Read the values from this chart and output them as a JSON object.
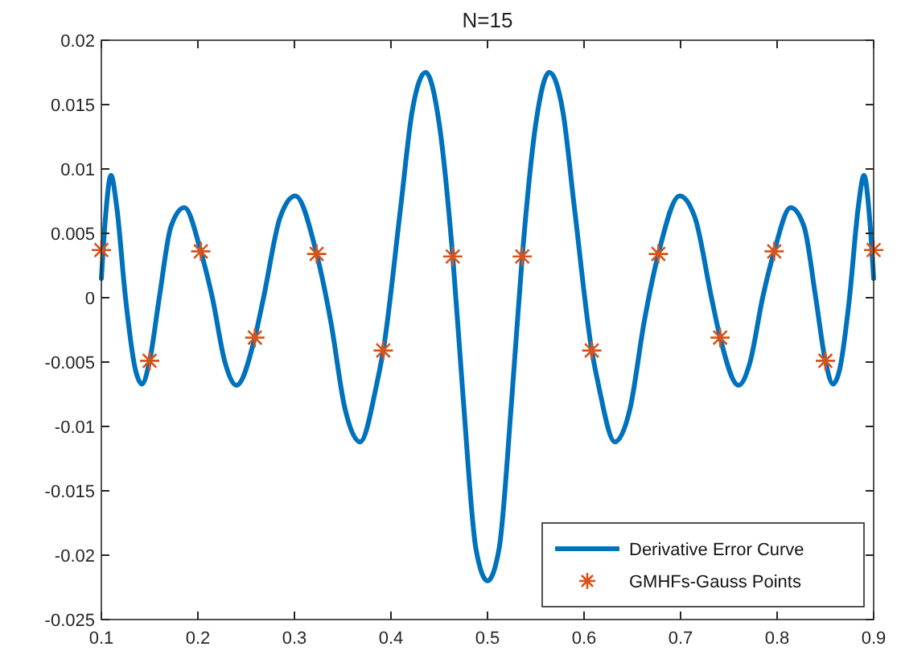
{
  "chart_data": {
    "type": "line",
    "title": "N=15",
    "xlim": [
      0.1,
      0.9
    ],
    "xticks": [
      0.1,
      0.2,
      0.3,
      0.4,
      0.5,
      0.6,
      0.7,
      0.8,
      0.9
    ],
    "ylim": [
      -0.025,
      0.02
    ],
    "yticks": [
      -0.025,
      -0.02,
      -0.015,
      -0.01,
      -0.005,
      0,
      0.005,
      0.01,
      0.015,
      0.02
    ],
    "grid": false,
    "legend": "bottom right",
    "series": [
      {
        "name": "Derivative Error Curve",
        "type": "line",
        "color": "#0072bd",
        "marker": "none",
        "line_style": "solid",
        "x": [
          0.1,
          0.104,
          0.11,
          0.116,
          0.125,
          0.135,
          0.142,
          0.15,
          0.16,
          0.172,
          0.186,
          0.203,
          0.215,
          0.228,
          0.24,
          0.259,
          0.268,
          0.285,
          0.301,
          0.323,
          0.338,
          0.352,
          0.368,
          0.385,
          0.392,
          0.41,
          0.422,
          0.436,
          0.45,
          0.464,
          0.475,
          0.488,
          0.5,
          0.512,
          0.525,
          0.536,
          0.55,
          0.564,
          0.578,
          0.59,
          0.608,
          0.615,
          0.632,
          0.648,
          0.662,
          0.677,
          0.699,
          0.715,
          0.732,
          0.741,
          0.76,
          0.772,
          0.785,
          0.797,
          0.814,
          0.828,
          0.84,
          0.85,
          0.858,
          0.865,
          0.875,
          0.884,
          0.89,
          0.896,
          0.9
        ],
        "values": [
          0.0015,
          0.006,
          0.0095,
          0.007,
          0,
          -0.0055,
          -0.0067,
          -0.0049,
          0,
          0.0055,
          0.007,
          0.0036,
          0,
          -0.005,
          -0.0068,
          -0.0031,
          0,
          0.0062,
          0.0079,
          0.0034,
          -0.002,
          -0.0085,
          -0.0112,
          -0.0068,
          -0.0041,
          0.007,
          0.0145,
          0.0175,
          0.0135,
          0.0032,
          -0.008,
          -0.0195,
          -0.022,
          -0.0195,
          -0.008,
          0.0032,
          0.0135,
          0.0175,
          0.0145,
          0.007,
          -0.0041,
          -0.0068,
          -0.0112,
          -0.0085,
          -0.002,
          0.0034,
          0.0079,
          0.0062,
          0,
          -0.0031,
          -0.0068,
          -0.005,
          0,
          0.0036,
          0.007,
          0.0055,
          0,
          -0.0049,
          -0.0067,
          -0.0055,
          0,
          0.007,
          0.0095,
          0.006,
          0.0015
        ]
      },
      {
        "name": "GMHFs-Gauss Points",
        "type": "scatter",
        "color": "#d95319",
        "marker": "cross",
        "x": [
          0.1,
          0.15,
          0.203,
          0.259,
          0.323,
          0.392,
          0.464,
          0.536,
          0.608,
          0.677,
          0.741,
          0.797,
          0.85,
          0.9
        ],
        "values": [
          0.0037,
          -0.0049,
          0.0036,
          -0.0031,
          0.0034,
          -0.0041,
          0.0032,
          0.0032,
          -0.0041,
          0.0034,
          -0.0031,
          0.0036,
          -0.0049,
          0.0037
        ]
      }
    ]
  }
}
